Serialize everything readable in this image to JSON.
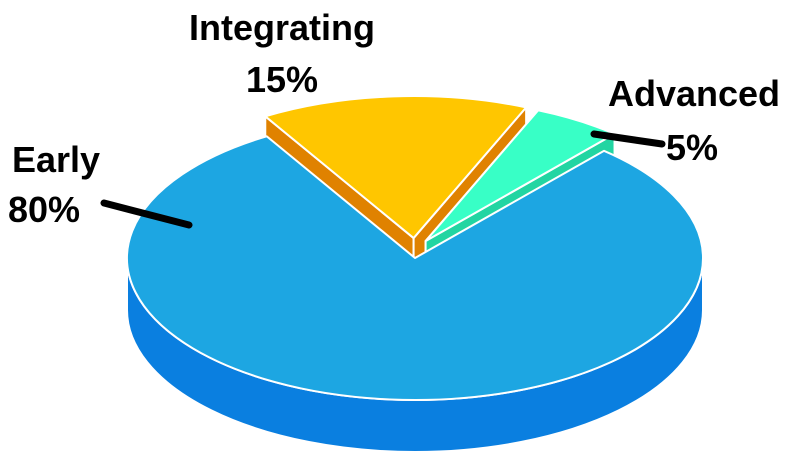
{
  "chart_data": {
    "type": "pie",
    "style": "3d-exploded",
    "title": "",
    "categories": [
      "Early",
      "Integrating",
      "Advanced"
    ],
    "values": [
      80,
      15,
      5
    ],
    "value_labels": [
      "80%",
      "15%",
      "5%"
    ],
    "colors": {
      "Early": "#1DA6E2",
      "Integrating": "#FFC600",
      "Advanced": "#38FFC6"
    },
    "side_colors": {
      "Early": "#0A7FE0",
      "Integrating": "#E08200",
      "Advanced": "#22D5A2"
    },
    "exploded": [
      "Integrating",
      "Advanced"
    ],
    "legend": "none"
  }
}
